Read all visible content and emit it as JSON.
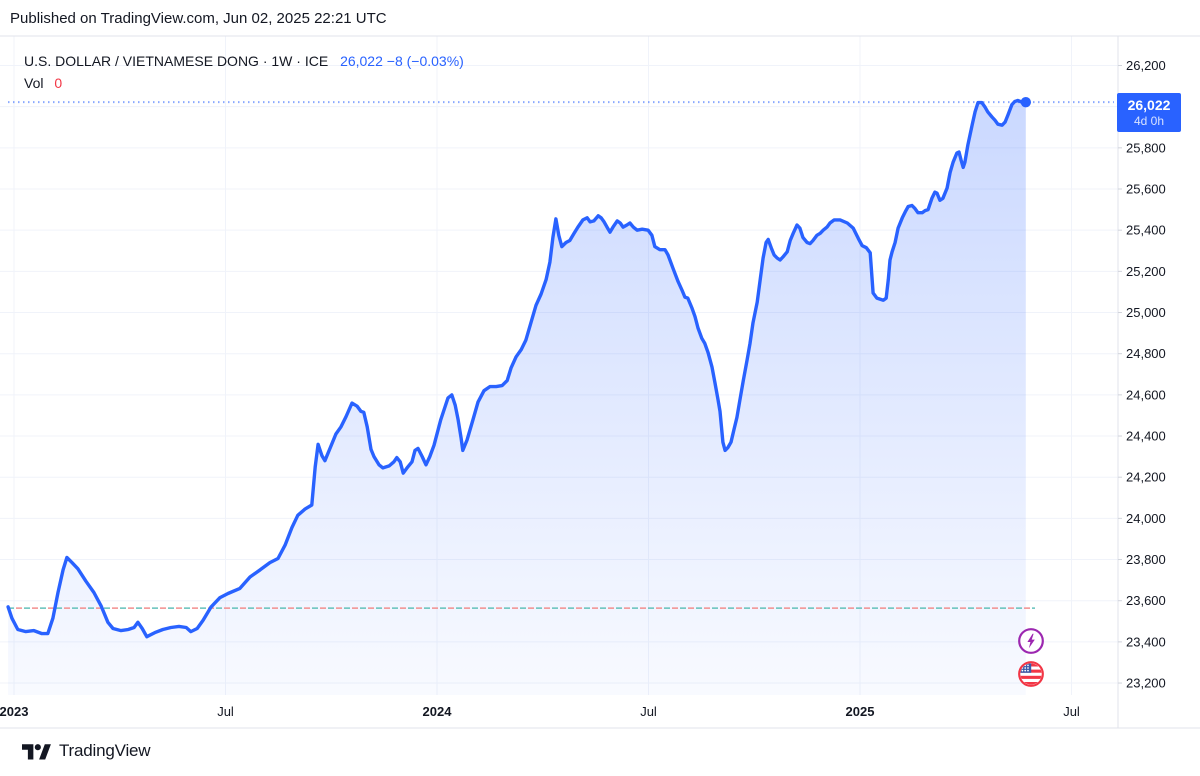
{
  "published_bar": {
    "text": "Published on TradingView.com, Jun 02, 2025 22:21 UTC"
  },
  "legend": {
    "instrument": "U.S. DOLLAR / VIETNAMESE DONG · 1W · ICE",
    "quote": "26,022 −8 (−0.03%)",
    "vol_label": "Vol",
    "vol_value": "0"
  },
  "price_tag": {
    "price": "26,022",
    "countdown": "4d 0h"
  },
  "footer": {
    "brand": "TradingView"
  },
  "icons": {
    "lightning": "lightning-bolt-icon",
    "flag": "us-flag-icon",
    "logo": "tradingview-logo-icon"
  },
  "colors": {
    "accent": "#2962FF",
    "text": "#131722",
    "down_red": "#F23645",
    "grid": "#F0F3FA",
    "border": "#E0E3EB",
    "tick": "#D1D4DC",
    "fill_top": "rgba(41,98,255,0.26)",
    "fill_bottom": "rgba(41,98,255,0.03)",
    "dotted_line": "#2962FF",
    "ref_red": "#F28E8E",
    "ref_teal": "#63C1BB",
    "badge_purple": "#9C27B0",
    "flag_blue": "#3B5BA9"
  },
  "chart_data": {
    "type": "area",
    "title": "U.S. DOLLAR / VIETNAMESE DONG",
    "interval": "1W",
    "exchange": "ICE",
    "last_price": 26022,
    "change": -8,
    "change_pct": -0.03,
    "ylim": [
      23100,
      26350
    ],
    "grid": true,
    "y_ticks": [
      26200,
      26000,
      25800,
      25600,
      25400,
      25200,
      25000,
      24800,
      24600,
      24400,
      24200,
      24000,
      23800,
      23600,
      23400,
      23200
    ],
    "x_ticks": [
      {
        "t": 2023.0,
        "label": "2023",
        "major": true
      },
      {
        "t": 2023.5,
        "label": "Jul",
        "major": false
      },
      {
        "t": 2024.0,
        "label": "2024",
        "major": true
      },
      {
        "t": 2024.5,
        "label": "Jul",
        "major": false
      },
      {
        "t": 2025.0,
        "label": "2025",
        "major": true
      },
      {
        "t": 2025.5,
        "label": "Jul",
        "major": false
      }
    ],
    "levels": {
      "current_price": 26022,
      "reference": 23564
    },
    "series": [
      {
        "name": "USD/VND weekly close",
        "points": [
          [
            2022.986,
            23570
          ],
          [
            2022.995,
            23515
          ],
          [
            2023.009,
            23460
          ],
          [
            2023.028,
            23450
          ],
          [
            2023.047,
            23455
          ],
          [
            2023.066,
            23440
          ],
          [
            2023.08,
            23440
          ],
          [
            2023.092,
            23515
          ],
          [
            2023.104,
            23640
          ],
          [
            2023.116,
            23750
          ],
          [
            2023.125,
            23810
          ],
          [
            2023.137,
            23785
          ],
          [
            2023.151,
            23755
          ],
          [
            2023.17,
            23695
          ],
          [
            2023.189,
            23640
          ],
          [
            2023.206,
            23575
          ],
          [
            2023.222,
            23495
          ],
          [
            2023.234,
            23465
          ],
          [
            2023.253,
            23455
          ],
          [
            2023.27,
            23460
          ],
          [
            2023.284,
            23470
          ],
          [
            2023.293,
            23495
          ],
          [
            2023.303,
            23465
          ],
          [
            2023.314,
            23425
          ],
          [
            2023.333,
            23445
          ],
          [
            2023.352,
            23460
          ],
          [
            2023.371,
            23470
          ],
          [
            2023.39,
            23475
          ],
          [
            2023.407,
            23470
          ],
          [
            2023.418,
            23450
          ],
          [
            2023.433,
            23465
          ],
          [
            2023.447,
            23505
          ],
          [
            2023.466,
            23570
          ],
          [
            2023.487,
            23615
          ],
          [
            2023.506,
            23635
          ],
          [
            2023.534,
            23660
          ],
          [
            2023.558,
            23715
          ],
          [
            2023.582,
            23750
          ],
          [
            2023.605,
            23785
          ],
          [
            2023.624,
            23805
          ],
          [
            2023.641,
            23870
          ],
          [
            2023.657,
            23955
          ],
          [
            2023.671,
            24015
          ],
          [
            2023.688,
            24045
          ],
          [
            2023.704,
            24065
          ],
          [
            2023.712,
            24250
          ],
          [
            2023.719,
            24360
          ],
          [
            2023.728,
            24305
          ],
          [
            2023.735,
            24280
          ],
          [
            2023.747,
            24340
          ],
          [
            2023.761,
            24410
          ],
          [
            2023.773,
            24445
          ],
          [
            2023.785,
            24495
          ],
          [
            2023.799,
            24560
          ],
          [
            2023.811,
            24545
          ],
          [
            2023.82,
            24520
          ],
          [
            2023.827,
            24515
          ],
          [
            2023.835,
            24445
          ],
          [
            2023.844,
            24335
          ],
          [
            2023.851,
            24300
          ],
          [
            2023.863,
            24260
          ],
          [
            2023.872,
            24245
          ],
          [
            2023.887,
            24255
          ],
          [
            2023.898,
            24275
          ],
          [
            2023.905,
            24295
          ],
          [
            2023.913,
            24275
          ],
          [
            2023.92,
            24220
          ],
          [
            2023.931,
            24250
          ],
          [
            2023.941,
            24275
          ],
          [
            2023.948,
            24330
          ],
          [
            2023.955,
            24340
          ],
          [
            2023.965,
            24300
          ],
          [
            2023.974,
            24260
          ],
          [
            2023.983,
            24300
          ],
          [
            2023.993,
            24355
          ],
          [
            2024.009,
            24480
          ],
          [
            2024.026,
            24585
          ],
          [
            2024.035,
            24600
          ],
          [
            2024.043,
            24550
          ],
          [
            2024.05,
            24480
          ],
          [
            2024.057,
            24390
          ],
          [
            2024.061,
            24330
          ],
          [
            2024.071,
            24380
          ],
          [
            2024.085,
            24480
          ],
          [
            2024.097,
            24565
          ],
          [
            2024.111,
            24620
          ],
          [
            2024.125,
            24640
          ],
          [
            2024.14,
            24640
          ],
          [
            2024.154,
            24645
          ],
          [
            2024.166,
            24670
          ],
          [
            2024.175,
            24730
          ],
          [
            2024.187,
            24785
          ],
          [
            2024.199,
            24820
          ],
          [
            2024.21,
            24865
          ],
          [
            2024.222,
            24950
          ],
          [
            2024.234,
            25035
          ],
          [
            2024.246,
            25090
          ],
          [
            2024.258,
            25160
          ],
          [
            2024.267,
            25245
          ],
          [
            2024.274,
            25365
          ],
          [
            2024.281,
            25455
          ],
          [
            2024.288,
            25375
          ],
          [
            2024.295,
            25320
          ],
          [
            2024.305,
            25340
          ],
          [
            2024.314,
            25350
          ],
          [
            2024.324,
            25385
          ],
          [
            2024.333,
            25415
          ],
          [
            2024.345,
            25450
          ],
          [
            2024.355,
            25460
          ],
          [
            2024.362,
            25440
          ],
          [
            2024.371,
            25445
          ],
          [
            2024.381,
            25470
          ],
          [
            2024.388,
            25460
          ],
          [
            2024.395,
            25440
          ],
          [
            2024.402,
            25415
          ],
          [
            2024.409,
            25390
          ],
          [
            2024.416,
            25415
          ],
          [
            2024.426,
            25445
          ],
          [
            2024.433,
            25435
          ],
          [
            2024.44,
            25415
          ],
          [
            2024.449,
            25425
          ],
          [
            2024.456,
            25435
          ],
          [
            2024.464,
            25415
          ],
          [
            2024.473,
            25400
          ],
          [
            2024.485,
            25405
          ],
          [
            2024.499,
            25400
          ],
          [
            2024.508,
            25375
          ],
          [
            2024.515,
            25320
          ],
          [
            2024.527,
            25305
          ],
          [
            2024.539,
            25305
          ],
          [
            2024.546,
            25280
          ],
          [
            2024.558,
            25215
          ],
          [
            2024.57,
            25150
          ],
          [
            2024.579,
            25110
          ],
          [
            2024.586,
            25075
          ],
          [
            2024.593,
            25070
          ],
          [
            2024.603,
            25020
          ],
          [
            2024.61,
            24980
          ],
          [
            2024.617,
            24925
          ],
          [
            2024.626,
            24875
          ],
          [
            2024.633,
            24850
          ],
          [
            2024.641,
            24805
          ],
          [
            2024.65,
            24735
          ],
          [
            2024.657,
            24660
          ],
          [
            2024.664,
            24580
          ],
          [
            2024.669,
            24520
          ],
          [
            2024.676,
            24370
          ],
          [
            2024.681,
            24330
          ],
          [
            2024.688,
            24345
          ],
          [
            2024.695,
            24370
          ],
          [
            2024.702,
            24430
          ],
          [
            2024.709,
            24490
          ],
          [
            2024.716,
            24575
          ],
          [
            2024.724,
            24670
          ],
          [
            2024.733,
            24770
          ],
          [
            2024.74,
            24850
          ],
          [
            2024.747,
            24950
          ],
          [
            2024.757,
            25050
          ],
          [
            2024.764,
            25160
          ],
          [
            2024.771,
            25265
          ],
          [
            2024.778,
            25340
          ],
          [
            2024.783,
            25355
          ],
          [
            2024.79,
            25315
          ],
          [
            2024.797,
            25280
          ],
          [
            2024.804,
            25265
          ],
          [
            2024.811,
            25255
          ],
          [
            2024.818,
            25270
          ],
          [
            2024.828,
            25295
          ],
          [
            2024.835,
            25350
          ],
          [
            2024.842,
            25385
          ],
          [
            2024.851,
            25425
          ],
          [
            2024.858,
            25410
          ],
          [
            2024.865,
            25365
          ],
          [
            2024.875,
            25340
          ],
          [
            2024.882,
            25335
          ],
          [
            2024.889,
            25350
          ],
          [
            2024.898,
            25375
          ],
          [
            2024.906,
            25385
          ],
          [
            2024.913,
            25400
          ],
          [
            2024.922,
            25415
          ],
          [
            2024.929,
            25435
          ],
          [
            2024.939,
            25450
          ],
          [
            2024.953,
            25450
          ],
          [
            2024.97,
            25435
          ],
          [
            2024.984,
            25410
          ],
          [
            2024.996,
            25360
          ],
          [
            2025.005,
            25325
          ],
          [
            2025.015,
            25315
          ],
          [
            2025.024,
            25290
          ],
          [
            2025.031,
            25095
          ],
          [
            2025.04,
            25070
          ],
          [
            2025.055,
            25060
          ],
          [
            2025.062,
            25070
          ],
          [
            2025.067,
            25160
          ],
          [
            2025.071,
            25255
          ],
          [
            2025.076,
            25295
          ],
          [
            2025.083,
            25340
          ],
          [
            2025.09,
            25410
          ],
          [
            2025.1,
            25460
          ],
          [
            2025.107,
            25490
          ],
          [
            2025.114,
            25515
          ],
          [
            2025.123,
            25520
          ],
          [
            2025.13,
            25505
          ],
          [
            2025.137,
            25485
          ],
          [
            2025.147,
            25485
          ],
          [
            2025.154,
            25495
          ],
          [
            2025.161,
            25500
          ],
          [
            2025.17,
            25555
          ],
          [
            2025.177,
            25585
          ],
          [
            2025.182,
            25580
          ],
          [
            2025.189,
            25545
          ],
          [
            2025.196,
            25555
          ],
          [
            2025.206,
            25605
          ],
          [
            2025.213,
            25680
          ],
          [
            2025.22,
            25730
          ],
          [
            2025.229,
            25775
          ],
          [
            2025.234,
            25780
          ],
          [
            2025.239,
            25740
          ],
          [
            2025.244,
            25705
          ],
          [
            2025.248,
            25730
          ],
          [
            2025.255,
            25815
          ],
          [
            2025.265,
            25910
          ],
          [
            2025.272,
            25975
          ],
          [
            2025.279,
            26020
          ],
          [
            2025.288,
            26020
          ],
          [
            2025.295,
            26000
          ],
          [
            2025.302,
            25975
          ],
          [
            2025.312,
            25950
          ],
          [
            2025.319,
            25935
          ],
          [
            2025.326,
            25915
          ],
          [
            2025.336,
            25910
          ],
          [
            2025.343,
            25925
          ],
          [
            2025.35,
            25960
          ],
          [
            2025.359,
            26010
          ],
          [
            2025.366,
            26025
          ],
          [
            2025.373,
            26030
          ],
          [
            2025.383,
            26022
          ],
          [
            2025.392,
            26022
          ]
        ]
      }
    ],
    "marker_last": {
      "t": 2025.392,
      "price": 26022
    }
  }
}
